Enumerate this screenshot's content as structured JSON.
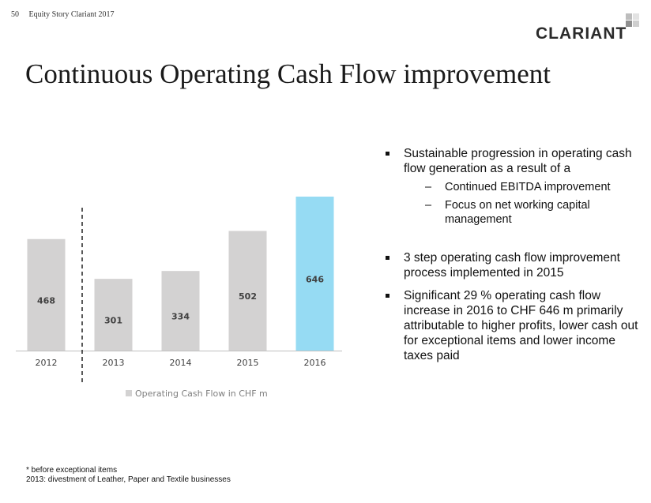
{
  "header": {
    "page_number": "50",
    "doc_title": "Equity Story Clariant 2017"
  },
  "logo": {
    "text": "CLARIANT",
    "icon": "clariant-square-mark"
  },
  "title": "Continuous Operating Cash Flow improvement",
  "chart_data": {
    "type": "bar",
    "categories": [
      "2012",
      "2013",
      "2014",
      "2015",
      "2016"
    ],
    "values": [
      468,
      301,
      334,
      502,
      646
    ],
    "value_labels": [
      "468",
      "301",
      "334",
      "502",
      "646"
    ],
    "series": [
      {
        "name": "Operating Cash Flow in CHF m",
        "values": [
          468,
          301,
          334,
          502,
          646
        ]
      }
    ],
    "legend_label": "Operating Cash Flow in CHF m",
    "legend_position": "bottom",
    "ylim": [
      0,
      646
    ],
    "grid": false,
    "divider_after_category": "2012",
    "colors": {
      "default_bar": "#d3d2d2",
      "highlight_bar": "#96dbf3",
      "highlight_category": "2016",
      "label": "#404040",
      "axis": "#bfbfbf"
    }
  },
  "bullets": [
    {
      "text": "Sustainable progression in operating cash flow generation as a result of a",
      "sub": [
        "Continued EBITDA improvement",
        "Focus on net working capital management"
      ]
    },
    {
      "text": "3 step operating cash flow improvement process implemented in 2015",
      "sub": []
    },
    {
      "text": "Significant 29 % operating cash flow increase in 2016 to CHF 646 m primarily attributable to higher profits, lower cash out for exceptional items and lower income taxes paid",
      "sub": []
    }
  ],
  "sub_bullet_glyph": "–",
  "footnote": {
    "line1": "* before exceptional items",
    "line2": "2013: divestment of Leather, Paper and Textile businesses"
  }
}
